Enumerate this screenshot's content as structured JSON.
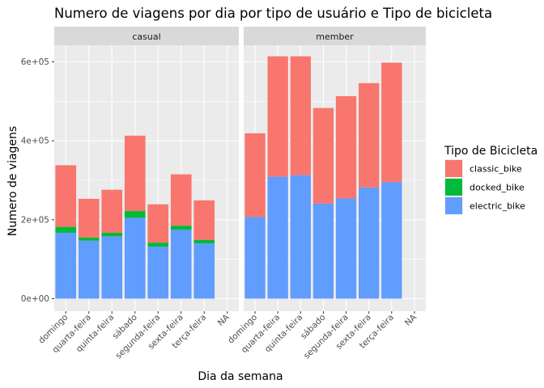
{
  "chart_data": {
    "type": "bar",
    "stacked": true,
    "faceted": true,
    "title": "Numero de viagens por dia por tipo de usuário e Tipo de bicicleta",
    "xlabel": "Dia da semana",
    "ylabel": "Numero de viagens",
    "ylim": [
      0,
      680000
    ],
    "yticks": [
      0,
      200000,
      400000,
      600000
    ],
    "ytick_labels": [
      "0e+00",
      "2e+05",
      "4e+05",
      "6e+05"
    ],
    "grid": true,
    "legend_position": "right",
    "legend_title": "Tipo de Bicicleta",
    "categories": [
      "domingo",
      "quarta-feira",
      "quinta-feira",
      "sábado",
      "segunda-feira",
      "sexta-feira",
      "terça-feira",
      "NA"
    ],
    "series": [
      {
        "name": "classic_bike",
        "color": "#F8766D"
      },
      {
        "name": "docked_bike",
        "color": "#00BA38"
      },
      {
        "name": "electric_bike",
        "color": "#619CFF"
      }
    ],
    "facets": [
      {
        "label": "casual",
        "values": {
          "electric_bike": [
            167000,
            147000,
            158000,
            205000,
            132000,
            175000,
            140000,
            null
          ],
          "docked_bike": [
            15000,
            8000,
            9000,
            17000,
            10000,
            10000,
            9000,
            null
          ],
          "classic_bike": [
            156000,
            98000,
            109000,
            191000,
            97000,
            130000,
            100000,
            null
          ]
        }
      },
      {
        "label": "member",
        "values": {
          "electric_bike": [
            207000,
            309000,
            313000,
            241000,
            254000,
            282000,
            295000,
            null
          ],
          "docked_bike": [
            0,
            0,
            0,
            0,
            0,
            0,
            0,
            null
          ],
          "classic_bike": [
            212000,
            305000,
            301000,
            242000,
            259000,
            264000,
            303000,
            null
          ]
        }
      }
    ]
  }
}
